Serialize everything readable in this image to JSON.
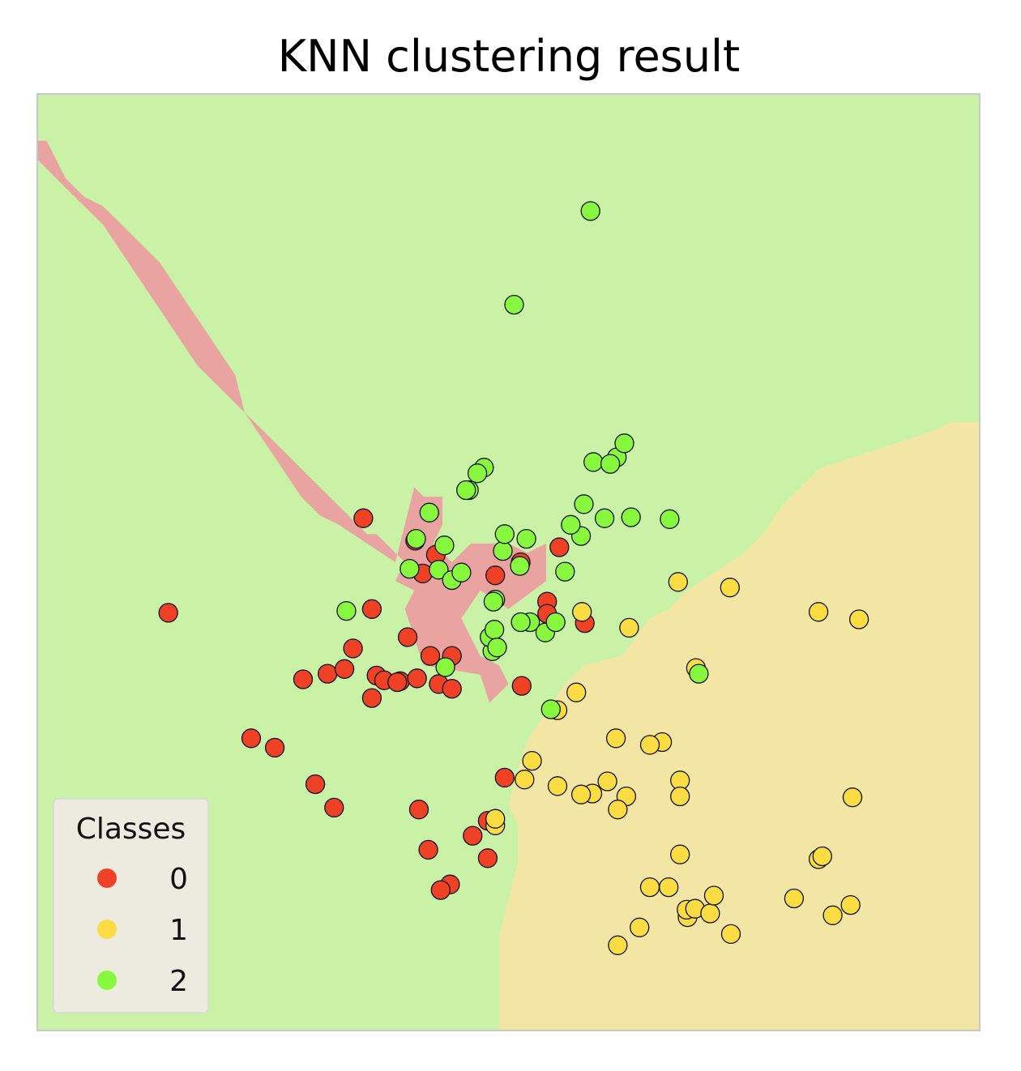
{
  "chart_data": {
    "type": "scatter",
    "title": "KNN clustering result",
    "xlabel": "",
    "ylabel": "",
    "axes_ticks_visible": false,
    "grid": false,
    "xlim": [
      0,
      100
    ],
    "ylim": [
      0,
      100
    ],
    "legend": {
      "title": "Classes",
      "placement": "lower-left",
      "entries": [
        {
          "label": "0",
          "color": "#ee4126"
        },
        {
          "label": "1",
          "color": "#fbdc42"
        },
        {
          "label": "2",
          "color": "#88f83f"
        }
      ]
    },
    "region_colors": {
      "0": "#e9a4a1",
      "1": "#f3e6a4",
      "2": "#c9f2a6"
    },
    "decision_regions": {
      "description": "k-nearest-neighbour decision regions; boundaries traced as polygons in data units",
      "class_0": [
        [
          0,
          0
        ],
        [
          0,
          95
        ],
        [
          1,
          95
        ],
        [
          2,
          93
        ],
        [
          3,
          91
        ],
        [
          5,
          89
        ],
        [
          7,
          88
        ],
        [
          9,
          86
        ],
        [
          11,
          84
        ],
        [
          13,
          82
        ],
        [
          15,
          79
        ],
        [
          17,
          76
        ],
        [
          19,
          73
        ],
        [
          21,
          70
        ],
        [
          22,
          66
        ],
        [
          24,
          63
        ],
        [
          26,
          60
        ],
        [
          28,
          57
        ],
        [
          30,
          55
        ],
        [
          32,
          54
        ],
        [
          35,
          52
        ],
        [
          38,
          50
        ],
        [
          40,
          58
        ],
        [
          41,
          57
        ],
        [
          43,
          57
        ],
        [
          43,
          54
        ],
        [
          42,
          52
        ],
        [
          44,
          50
        ],
        [
          46,
          52
        ],
        [
          50,
          52
        ],
        [
          52,
          51
        ],
        [
          54,
          52
        ],
        [
          54,
          48
        ],
        [
          50,
          45
        ],
        [
          47,
          47
        ],
        [
          45,
          44
        ],
        [
          47,
          40
        ],
        [
          49,
          39
        ],
        [
          50,
          37
        ],
        [
          48,
          35
        ],
        [
          47,
          38
        ],
        [
          41,
          39
        ],
        [
          40,
          42
        ],
        [
          39,
          45
        ],
        [
          40,
          47
        ],
        [
          38,
          48
        ],
        [
          39,
          50
        ],
        [
          38,
          51
        ],
        [
          36,
          53
        ],
        [
          35,
          53
        ],
        [
          33,
          55
        ],
        [
          31,
          57
        ],
        [
          29,
          59
        ],
        [
          27,
          61
        ],
        [
          25,
          63
        ],
        [
          23,
          65
        ],
        [
          21,
          67
        ],
        [
          19,
          69
        ],
        [
          17,
          71
        ],
        [
          15,
          74
        ],
        [
          13,
          77
        ],
        [
          11,
          80
        ],
        [
          9,
          83
        ],
        [
          7,
          86
        ],
        [
          5,
          88
        ],
        [
          3,
          90
        ],
        [
          1,
          92
        ],
        [
          0,
          93
        ],
        [
          0,
          0
        ]
      ],
      "class_1": [
        [
          49,
          0
        ],
        [
          100,
          0
        ],
        [
          100,
          65
        ],
        [
          97,
          65
        ],
        [
          95,
          64
        ],
        [
          92,
          63
        ],
        [
          89,
          62
        ],
        [
          86,
          61
        ],
        [
          83,
          60
        ],
        [
          81,
          58
        ],
        [
          79,
          56
        ],
        [
          77,
          53
        ],
        [
          75,
          51
        ],
        [
          72,
          49
        ],
        [
          69,
          47
        ],
        [
          67,
          45
        ],
        [
          65,
          44
        ],
        [
          62,
          40
        ],
        [
          58,
          39
        ],
        [
          56,
          37
        ],
        [
          52,
          31
        ],
        [
          51,
          28
        ],
        [
          50,
          24
        ],
        [
          51,
          22
        ],
        [
          51,
          18
        ],
        [
          50,
          14
        ],
        [
          49,
          10
        ],
        [
          49,
          0
        ]
      ],
      "class_2": []
    },
    "series": [
      {
        "name": "0",
        "color": "#ee4126",
        "x": [
          34.6,
          40.1,
          13.9,
          35.5,
          39.3,
          36.0,
          28.2,
          30.8,
          33.5,
          32.6,
          36.8,
          38.5,
          41.7,
          42.6,
          40.3,
          38.2,
          35.5,
          44.0,
          44.0,
          22.7,
          25.2,
          29.5,
          31.5,
          40.5,
          41.5,
          43.8,
          42.8,
          47.8,
          46.2,
          47.8,
          49.6,
          51.4,
          54.1,
          58.1,
          54.1,
          55.4,
          51.3,
          48.6,
          40.9,
          42.3
        ],
        "y": [
          54.7,
          52.3,
          44.6,
          45.0,
          42.0,
          37.9,
          37.5,
          38.1,
          40.8,
          38.6,
          37.4,
          37.3,
          40.0,
          37.0,
          37.6,
          37.2,
          35.5,
          36.5,
          40.0,
          31.2,
          30.2,
          26.3,
          23.8,
          23.6,
          19.3,
          15.6,
          15.0,
          18.4,
          20.8,
          22.4,
          27.0,
          36.8,
          45.8,
          43.5,
          44.5,
          51.6,
          50.0,
          48.6,
          48.8,
          50.8
        ]
      },
      {
        "name": "1",
        "color": "#fbdc42",
        "x": [
          68.0,
          73.5,
          87.2,
          82.9,
          69.9,
          62.8,
          57.8,
          55.2,
          57.2,
          66.3,
          61.4,
          60.5,
          68.2,
          62.5,
          58.9,
          55.2,
          48.6,
          48.6,
          51.7,
          52.5,
          65.0,
          61.6,
          67.0,
          69.0,
          68.9,
          69.8,
          71.4,
          80.3,
          84.4,
          86.3,
          86.5,
          65.0,
          61.6,
          68.2,
          71.8,
          73.6,
          63.9,
          68.2,
          57.7,
          82.9,
          83.3
        ],
        "y": [
          47.9,
          47.3,
          43.9,
          44.7,
          38.7,
          43.0,
          44.7,
          34.2,
          36.1,
          30.8,
          31.2,
          26.6,
          26.7,
          25.0,
          25.3,
          26.1,
          21.9,
          22.6,
          26.8,
          28.8,
          30.5,
          23.6,
          15.3,
          12.1,
          12.9,
          13.0,
          12.5,
          14.1,
          12.3,
          13.4,
          24.9,
          15.3,
          9.1,
          18.8,
          14.4,
          10.3,
          11.0,
          25.0,
          25.2,
          18.3,
          18.6
        ]
      },
      {
        "name": "2",
        "color": "#88f83f",
        "x": [
          58.7,
          50.6,
          61.5,
          59.0,
          47.4,
          46.7,
          45.8,
          45.5,
          41.6,
          40.2,
          43.2,
          49.4,
          49.6,
          51.9,
          51.2,
          42.6,
          39.5,
          44.0,
          45.0,
          56.0,
          60.8,
          62.3,
          60.2,
          57.7,
          56.6,
          58.0,
          52.3,
          53.9,
          51.3,
          48.6,
          48.4,
          67.1,
          63.0,
          32.8,
          48.3,
          43.3,
          54.5,
          70.2,
          48.0,
          48.5,
          48.8,
          55.0
        ],
        "y": [
          87.5,
          77.5,
          61.2,
          60.7,
          60.1,
          59.5,
          57.7,
          57.7,
          55.3,
          52.5,
          51.8,
          51.2,
          53.0,
          52.5,
          49.6,
          49.2,
          49.3,
          48.1,
          48.9,
          49.0,
          60.5,
          62.7,
          54.7,
          52.8,
          54.0,
          56.2,
          43.6,
          42.5,
          43.6,
          46.0,
          45.8,
          54.6,
          54.8,
          44.8,
          40.5,
          38.8,
          34.3,
          38.1,
          42.0,
          42.8,
          40.9,
          43.6
        ]
      }
    ]
  }
}
